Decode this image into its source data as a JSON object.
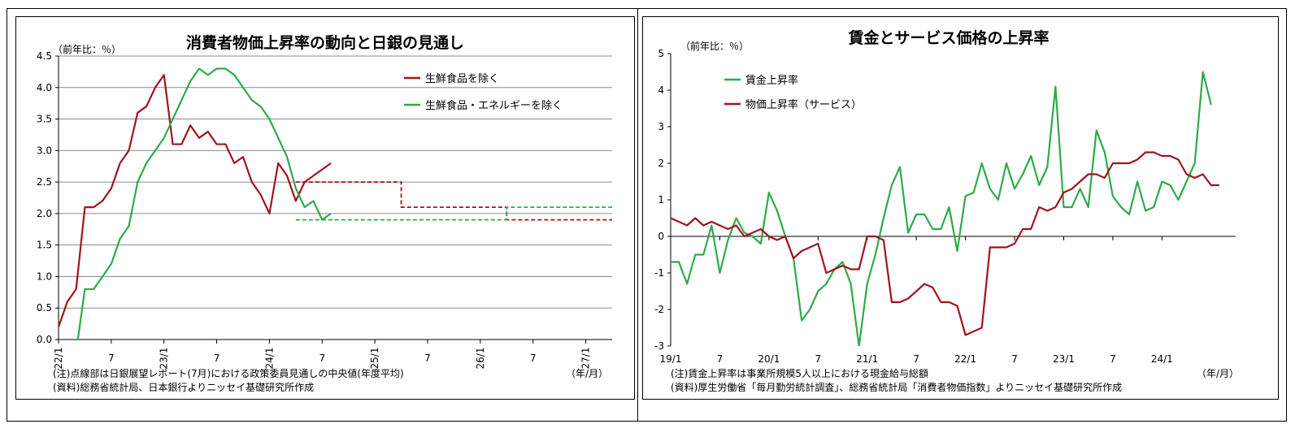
{
  "chart_data": [
    {
      "type": "line",
      "title": "消費者物価上昇率の動向と日銀の見通し",
      "ylabel": "（前年比：％）",
      "xlabel": "（年/月）",
      "ylim": [
        0,
        4.5
      ],
      "yticks": [
        "0.0",
        "0.5",
        "1.0",
        "1.5",
        "2.0",
        "2.5",
        "3.0",
        "3.5",
        "4.0",
        "4.5"
      ],
      "xticks": [
        {
          "label": "22/1",
          "month": 0,
          "rot": true
        },
        {
          "label": "7",
          "month": 6,
          "rot": false
        },
        {
          "label": "23/1",
          "month": 12,
          "rot": true
        },
        {
          "label": "7",
          "month": 18,
          "rot": false
        },
        {
          "label": "24/1",
          "month": 24,
          "rot": true
        },
        {
          "label": "7",
          "month": 30,
          "rot": false
        },
        {
          "label": "25/1",
          "month": 36,
          "rot": true
        },
        {
          "label": "7",
          "month": 42,
          "rot": false
        },
        {
          "label": "26/1",
          "month": 48,
          "rot": true
        },
        {
          "label": "7",
          "month": 54,
          "rot": false
        },
        {
          "label": "27/1",
          "month": 60,
          "rot": true
        }
      ],
      "x_range_months": [
        0,
        63
      ],
      "grid": "horizontal",
      "legend_position": "top-right",
      "series": [
        {
          "name": "生鮮食品を除く",
          "color": "#a0141e",
          "style": "solid",
          "start_month": 0,
          "values": [
            0.2,
            0.6,
            0.8,
            2.1,
            2.1,
            2.2,
            2.4,
            2.8,
            3.0,
            3.6,
            3.7,
            4.0,
            4.2,
            3.1,
            3.1,
            3.4,
            3.2,
            3.3,
            3.1,
            3.1,
            2.8,
            2.9,
            2.5,
            2.3,
            2.0,
            2.8,
            2.6,
            2.2,
            2.5,
            2.6,
            2.7,
            2.8
          ]
        },
        {
          "name": "生鮮食品・エネルギーを除く",
          "color": "#2eaa4a",
          "style": "solid",
          "start_month": 0,
          "values": [
            -0.2,
            -0.1,
            -0.2,
            0.8,
            0.8,
            1.0,
            1.2,
            1.6,
            1.8,
            2.5,
            2.8,
            3.0,
            3.2,
            3.5,
            3.8,
            4.1,
            4.3,
            4.2,
            4.3,
            4.3,
            4.2,
            4.0,
            3.8,
            3.7,
            3.5,
            3.2,
            2.9,
            2.4,
            2.1,
            2.2,
            1.9,
            2.0
          ]
        }
      ],
      "forecasts": [
        {
          "series": "生鮮食品を除く",
          "color": "#a0141e",
          "style": "dashed",
          "points": [
            [
              27,
              2.5
            ],
            [
              39,
              2.5
            ],
            [
              39,
              2.1
            ],
            [
              51,
              2.1
            ],
            [
              51,
              1.9
            ],
            [
              63,
              1.9
            ]
          ]
        },
        {
          "series": "生鮮食品・エネルギーを除く",
          "color": "#2eaa4a",
          "style": "dashed",
          "points": [
            [
              27,
              1.9
            ],
            [
              51,
              1.9
            ],
            [
              51,
              2.1
            ],
            [
              63,
              2.1
            ]
          ]
        }
      ],
      "notes": [
        "(注)点線部は日銀展望レポート(7月)における政策委員見通しの中央値(年度平均)",
        "(資料)総務省統計局、日本銀行よりニッセイ基礎研究所作成"
      ]
    },
    {
      "type": "line",
      "title": "賃金とサービス価格の上昇率",
      "ylabel": "（前年比：％）",
      "xlabel": "（年/月）",
      "ylim": [
        -3,
        5
      ],
      "yticks": [
        "-3",
        "-2",
        "-1",
        "0",
        "1",
        "2",
        "3",
        "4",
        "5"
      ],
      "xticks": [
        {
          "label": "19/1",
          "month": 0
        },
        {
          "label": "7",
          "month": 6
        },
        {
          "label": "20/1",
          "month": 12
        },
        {
          "label": "7",
          "month": 18
        },
        {
          "label": "21/1",
          "month": 24
        },
        {
          "label": "7",
          "month": 30
        },
        {
          "label": "22/1",
          "month": 36
        },
        {
          "label": "7",
          "month": 42
        },
        {
          "label": "23/1",
          "month": 48
        },
        {
          "label": "7",
          "month": 54
        },
        {
          "label": "24/1",
          "month": 60
        }
      ],
      "x_range_months": [
        0,
        69
      ],
      "grid": "none",
      "legend_position": "top-left",
      "series": [
        {
          "name": "賃金上昇率",
          "color": "#2eaa4a",
          "start_month": 0,
          "values": [
            -0.7,
            -0.7,
            -1.3,
            -0.5,
            -0.5,
            0.3,
            -1.0,
            -0.1,
            0.5,
            0.1,
            0.0,
            -0.2,
            1.2,
            0.7,
            0.0,
            -0.6,
            -2.3,
            -2.0,
            -1.5,
            -1.3,
            -0.9,
            -0.7,
            -1.3,
            -3.0,
            -1.3,
            -0.5,
            0.5,
            1.4,
            1.9,
            0.1,
            0.6,
            0.6,
            0.2,
            0.2,
            0.8,
            -0.4,
            1.1,
            1.2,
            2.0,
            1.3,
            1.0,
            2.0,
            1.3,
            1.7,
            2.2,
            1.4,
            1.9,
            4.1,
            0.8,
            0.8,
            1.3,
            0.8,
            2.9,
            2.3,
            1.1,
            0.8,
            0.6,
            1.5,
            0.7,
            0.8,
            1.5,
            1.4,
            1.0,
            1.5,
            2.0,
            4.5,
            3.6
          ]
        },
        {
          "name": "物価上昇率（サービス）",
          "color": "#a0141e",
          "start_month": 0,
          "values": [
            0.5,
            0.4,
            0.3,
            0.5,
            0.3,
            0.4,
            0.3,
            0.2,
            0.3,
            0.0,
            0.1,
            0.2,
            0.0,
            -0.1,
            0.0,
            -0.6,
            -0.4,
            -0.3,
            -0.2,
            -1.0,
            -0.9,
            -0.8,
            -0.9,
            -0.9,
            0.0,
            0.0,
            -0.1,
            -1.8,
            -1.8,
            -1.7,
            -1.5,
            -1.3,
            -1.4,
            -1.8,
            -1.8,
            -1.9,
            -2.7,
            -2.6,
            -2.5,
            -0.3,
            -0.3,
            -0.3,
            -0.2,
            0.2,
            0.2,
            0.8,
            0.7,
            0.8,
            1.2,
            1.3,
            1.5,
            1.7,
            1.7,
            1.6,
            2.0,
            2.0,
            2.0,
            2.1,
            2.3,
            2.3,
            2.2,
            2.2,
            2.1,
            1.7,
            1.6,
            1.7,
            1.4,
            1.4
          ]
        }
      ],
      "notes": [
        "(注)賃金上昇率は事業所規模5人以上における現金給与総額",
        "(資料)厚生労働省「毎月勤労統計調査」、総務省統計局「消費者物価指数」よりニッセイ基礎研究所作成"
      ]
    }
  ]
}
